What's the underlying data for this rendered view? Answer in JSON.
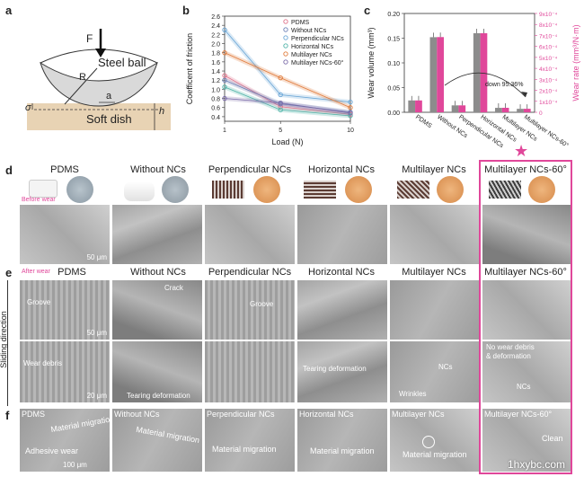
{
  "panel_a": {
    "label": "a",
    "force": "F",
    "radius": "R",
    "ball": "Steel ball",
    "a": "a",
    "sigma": "σ",
    "h": "h",
    "dish": "Soft dish"
  },
  "panel_b": {
    "label": "b"
  },
  "panel_c": {
    "label": "c",
    "annotation": "down 95.36%"
  },
  "panel_d": {
    "label": "d",
    "before_label": "Before wear",
    "scale_text": "50 μm"
  },
  "panel_e": {
    "label": "e",
    "after_label": "After wear",
    "side_label": "Sliding direction",
    "scale_top": "50 μm",
    "scale_bottom": "20 μm",
    "annotations": {
      "groove1": "Groove",
      "wear_debris": "Wear debris",
      "crack": "Crack",
      "tearing1": "Tearing deformation",
      "groove2": "Groove",
      "tearing2": "Tearing deformation",
      "ncs1": "NCs",
      "wrinkles": "Wrinkles",
      "no_wear": "No wear debris\n& deformation",
      "ncs2": "NCs"
    }
  },
  "panel_f": {
    "label": "f",
    "scale_text": "100 μm",
    "annotations": {
      "mm1": "Material migration",
      "adhesive": "Adhesive wear",
      "mm2": "Material migration",
      "mm3": "Material migration",
      "mm4": "Material migration",
      "mm5": "Material migration",
      "clean": "Clean"
    }
  },
  "columns": [
    "PDMS",
    "Without NCs",
    "Perpendicular NCs",
    "Horizontal NCs",
    "Multilayer NCs",
    "Multilayer NCs-60°"
  ],
  "watermark": "1hxybc.com",
  "colors": {
    "magenta": "#e0479a",
    "gray_bar": "#8c8c8c"
  },
  "chart_data": [
    {
      "type": "line",
      "title": "",
      "xlabel": "Load (N)",
      "ylabel": "Coefficent of friction",
      "x": [
        1,
        5,
        10
      ],
      "xlim": [
        1,
        10
      ],
      "ylim": [
        0.3,
        2.6
      ],
      "yticks": [
        "0.4",
        "0.6",
        "0.8",
        "1.0",
        "1.2",
        "1.4",
        "1.6",
        "1.8",
        "2.0",
        "2.2",
        "2.4",
        "2.6"
      ],
      "xticks": [
        "1",
        "5",
        "10"
      ],
      "series": [
        {
          "name": "PDMS",
          "values": [
            1.3,
            0.62,
            0.45
          ],
          "color": "#e0728a",
          "marker": "circle"
        },
        {
          "name": "Without NCs",
          "values": [
            1.2,
            0.68,
            0.5
          ],
          "color": "#6b7fb5",
          "marker": "triangle"
        },
        {
          "name": "Perpendicular NCs",
          "values": [
            2.3,
            0.88,
            0.72
          ],
          "color": "#6aa6d6",
          "marker": "diamond"
        },
        {
          "name": "Horizontal NCs",
          "values": [
            1.05,
            0.55,
            0.42
          ],
          "color": "#4fb3a8",
          "marker": "hexagon"
        },
        {
          "name": "Multilayer NCs",
          "values": [
            1.8,
            1.25,
            0.6
          ],
          "color": "#e07a3a",
          "marker": "star"
        },
        {
          "name": "Multilayer NCs-60°",
          "values": [
            0.8,
            0.7,
            0.48
          ],
          "color": "#7a6aa8",
          "marker": "plus"
        }
      ],
      "legend": "top-right"
    },
    {
      "type": "bar",
      "title": "",
      "categories": [
        "PDMS",
        "Without NCs",
        "Perpendicular NCs",
        "Horizontal NCs",
        "Multilayer NCs",
        "Multilayer NCs-60°"
      ],
      "ylabel": "Wear volume (mm³)",
      "y2label": "Wear rate (mm³/N·m)",
      "ylim": [
        0,
        0.2
      ],
      "yticks": [
        "0.00",
        "0.05",
        "0.10",
        "0.15",
        "0.20"
      ],
      "y2lim": [
        0,
        0.0009
      ],
      "y2ticks": [
        "0",
        "1x10⁻⁴",
        "2x10⁻⁴",
        "3x10⁻⁴",
        "4x10⁻⁴",
        "5x10⁻⁴",
        "6x10⁻⁴",
        "7x10⁻⁴",
        "8x10⁻⁴",
        "9x10⁻⁴"
      ],
      "series": [
        {
          "name": "Wear volume",
          "values": [
            0.024,
            0.152,
            0.014,
            0.16,
            0.009,
            0.007
          ],
          "color": "#8c8c8c"
        },
        {
          "name": "Wear rate",
          "values": [
            0.000108,
            0.000685,
            6.3e-05,
            0.00072,
            4.1e-05,
            3.2e-05
          ],
          "color": "#e0479a"
        }
      ]
    }
  ]
}
